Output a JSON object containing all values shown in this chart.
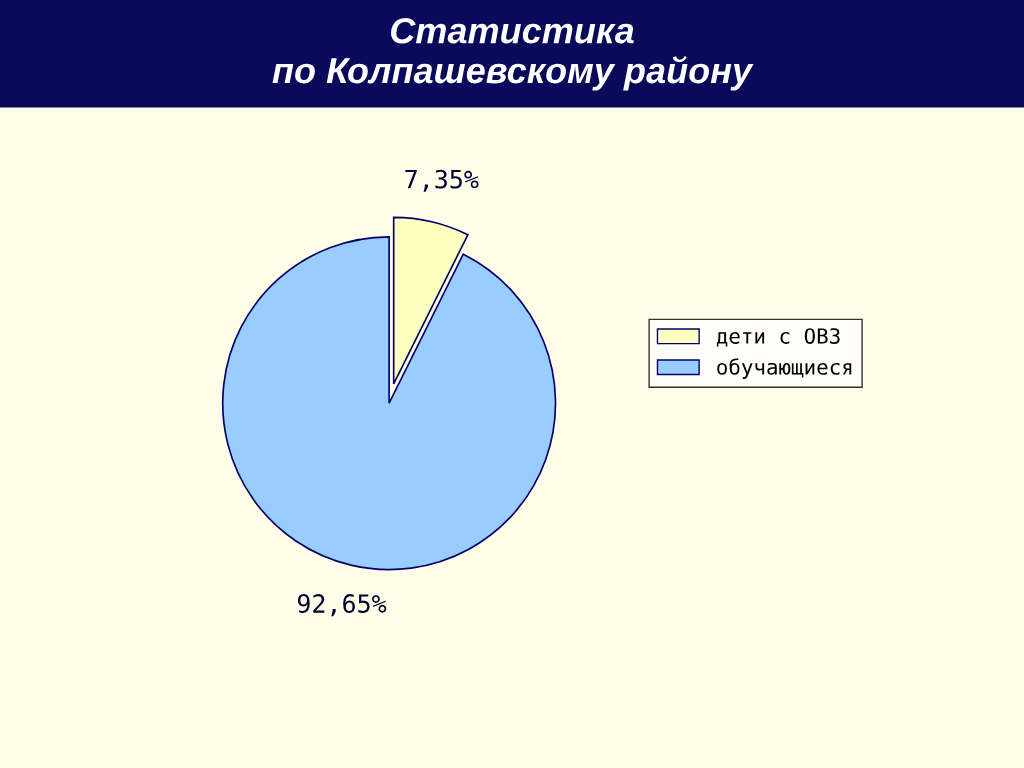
{
  "chart_data": {
    "type": "pie",
    "title": "Статистика\nпо Колпашевскому району",
    "categories": [
      "дети с ОВЗ",
      "обучающиеся"
    ],
    "values": [
      7.35,
      92.65
    ],
    "value_labels": [
      "7,35%",
      "92,65%"
    ],
    "colors": [
      "#ffffc0",
      "#99ccff"
    ],
    "legend": "right"
  }
}
